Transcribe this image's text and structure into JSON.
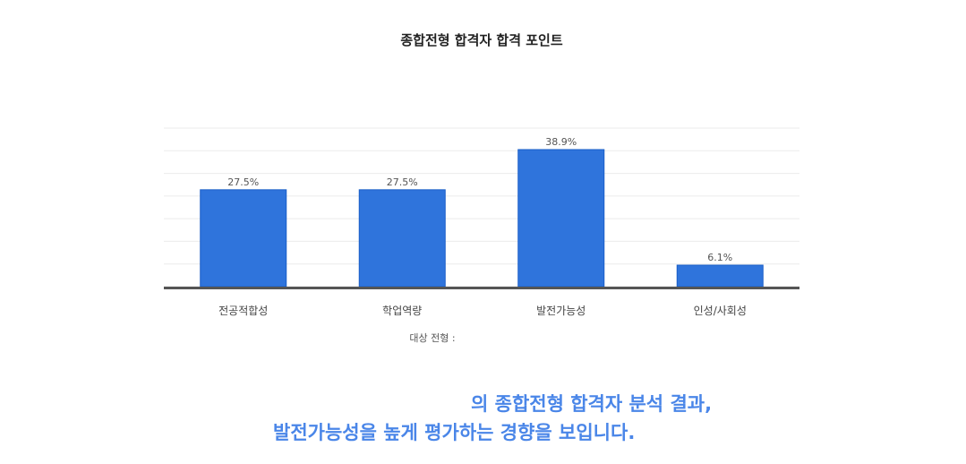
{
  "chart_data": {
    "type": "bar",
    "title": "종합전형 합격자 합격 포인트",
    "categories": [
      "전공적합성",
      "학업역량",
      "발전가능성",
      "인성/사회성"
    ],
    "values": [
      27.5,
      27.5,
      38.9,
      6.1
    ],
    "data_labels": [
      "27.5%",
      "27.5%",
      "38.9%",
      "6.1%"
    ],
    "xlabel": "대상 전형 :",
    "ylabel": "",
    "ylim": [
      0,
      45
    ],
    "grid": true,
    "legend": "none",
    "bar_color": "#2f74dc",
    "bar_edge_color": "#1a5fc8",
    "axis_color": "#555555",
    "grid_color": "#ebebeb"
  },
  "summary": {
    "line1": "의 종합전형 합격자 분석 결과,",
    "line2": "발전가능성을 높게 평가하는 경향을 보입니다."
  }
}
